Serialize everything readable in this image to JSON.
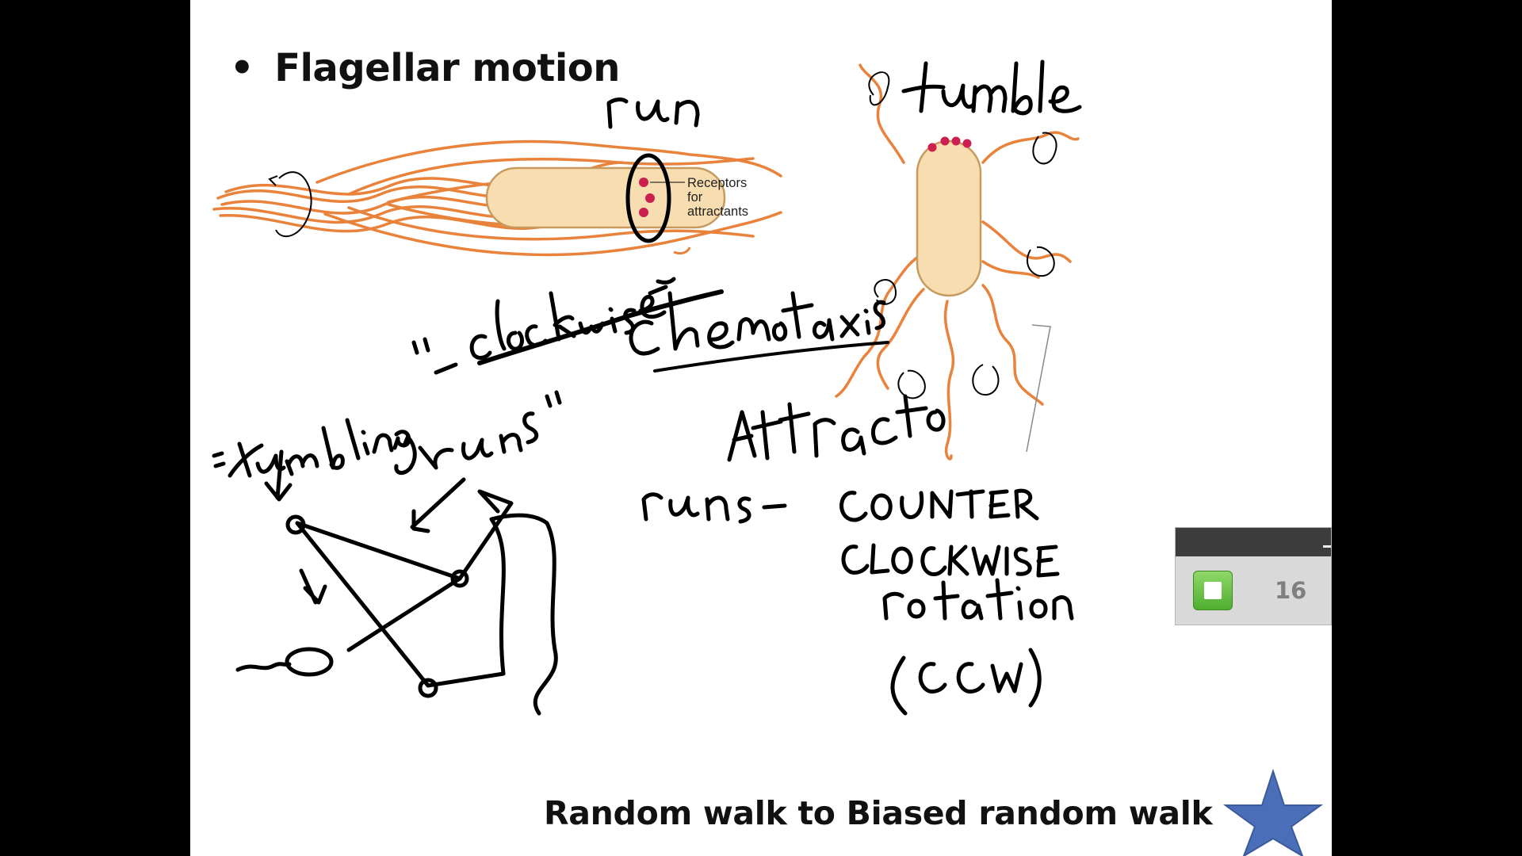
{
  "slide": {
    "bullet": "•",
    "title": "Flagellar motion",
    "footer": "Random walk to Biased random walk",
    "receptor_label": [
      "Receptors",
      "for",
      "attractants"
    ]
  },
  "handwriting": {
    "run": "run",
    "tumble": "tumble",
    "tumbling_clockwise": "\"tumbling\" - clockwise",
    "runs_quoted": "\"runs\"",
    "chemotaxis": "chemotaxis",
    "attracto": "Attracto",
    "runs_ccw": "runs -",
    "counter": "COUNTER",
    "clockwise": "CLOCKWISE",
    "rotation": "rotation",
    "ccw": "(CCW)"
  },
  "slideshow_controls": {
    "slide_number": "16",
    "stop_icon": "stop-square-icon"
  },
  "colors": {
    "flagella": "#e9823a",
    "cell_fill": "#f8ddb0",
    "receptor": "#cc1f4f",
    "star": "#4a6fb8",
    "stop_button": "#5cb83a"
  }
}
